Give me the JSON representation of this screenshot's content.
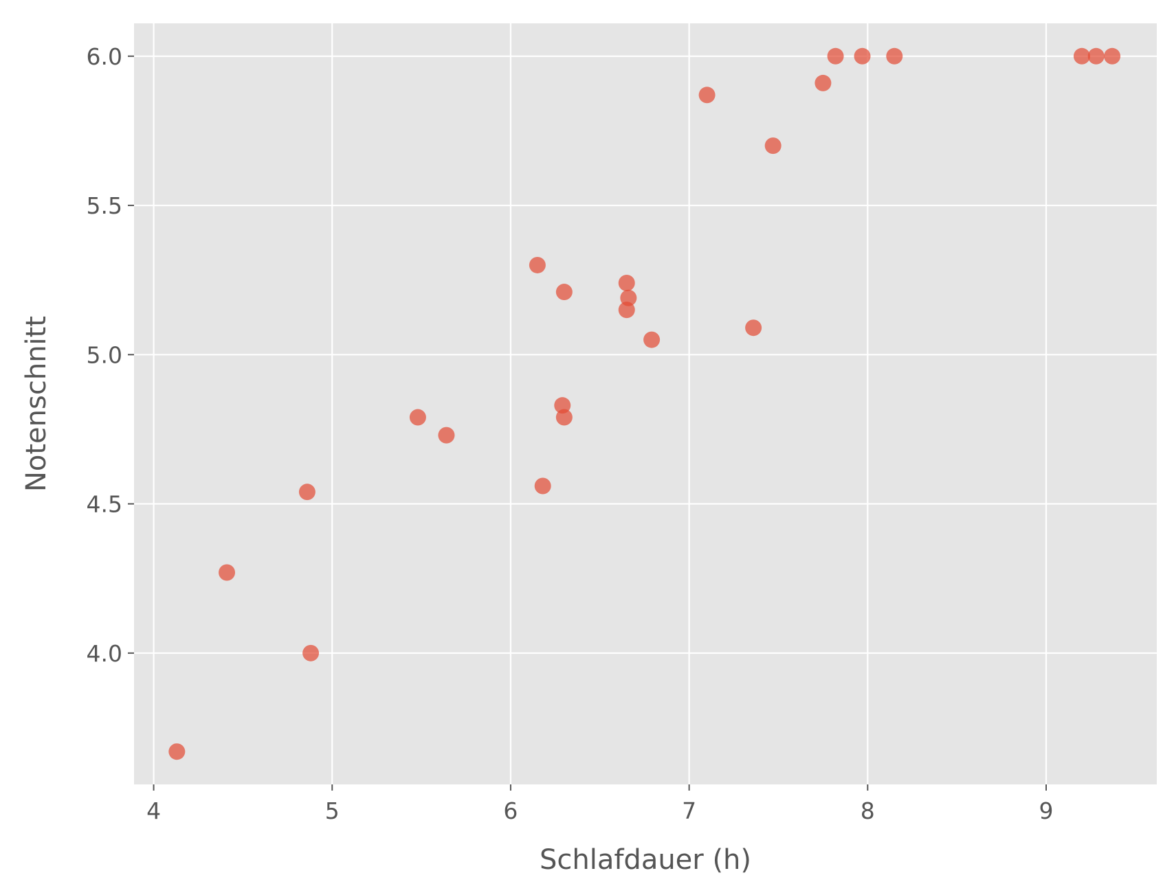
{
  "chart_data": {
    "type": "scatter",
    "title": "",
    "xlabel": "Schlafdauer (h)",
    "ylabel": "Notenschnitt",
    "xlim": [
      3.89,
      9.62
    ],
    "ylim": [
      3.56,
      6.11
    ],
    "xticks": [
      4,
      5,
      6,
      7,
      8,
      9
    ],
    "xtick_labels": [
      "4",
      "5",
      "6",
      "7",
      "8",
      "9"
    ],
    "yticks": [
      4.0,
      4.5,
      5.0,
      5.5,
      6.0
    ],
    "ytick_labels": [
      "4.0",
      "4.5",
      "5.0",
      "5.5",
      "6.0"
    ],
    "grid": true,
    "background": "#E5E5E5",
    "point_color": "#E24A33",
    "points": [
      {
        "x": 4.13,
        "y": 3.67
      },
      {
        "x": 4.41,
        "y": 4.27
      },
      {
        "x": 4.86,
        "y": 4.54
      },
      {
        "x": 4.88,
        "y": 4.0
      },
      {
        "x": 5.48,
        "y": 4.79
      },
      {
        "x": 5.64,
        "y": 4.73
      },
      {
        "x": 6.15,
        "y": 5.3
      },
      {
        "x": 6.18,
        "y": 4.56
      },
      {
        "x": 6.29,
        "y": 4.83
      },
      {
        "x": 6.3,
        "y": 4.79
      },
      {
        "x": 6.3,
        "y": 5.21
      },
      {
        "x": 6.65,
        "y": 5.24
      },
      {
        "x": 6.66,
        "y": 5.19
      },
      {
        "x": 6.65,
        "y": 5.15
      },
      {
        "x": 6.79,
        "y": 5.05
      },
      {
        "x": 7.1,
        "y": 5.87
      },
      {
        "x": 7.36,
        "y": 5.09
      },
      {
        "x": 7.47,
        "y": 5.7
      },
      {
        "x": 7.75,
        "y": 5.91
      },
      {
        "x": 7.82,
        "y": 6.0
      },
      {
        "x": 7.97,
        "y": 6.0
      },
      {
        "x": 8.15,
        "y": 6.0
      },
      {
        "x": 9.2,
        "y": 6.0
      },
      {
        "x": 9.28,
        "y": 6.0
      },
      {
        "x": 9.37,
        "y": 6.0
      }
    ]
  }
}
